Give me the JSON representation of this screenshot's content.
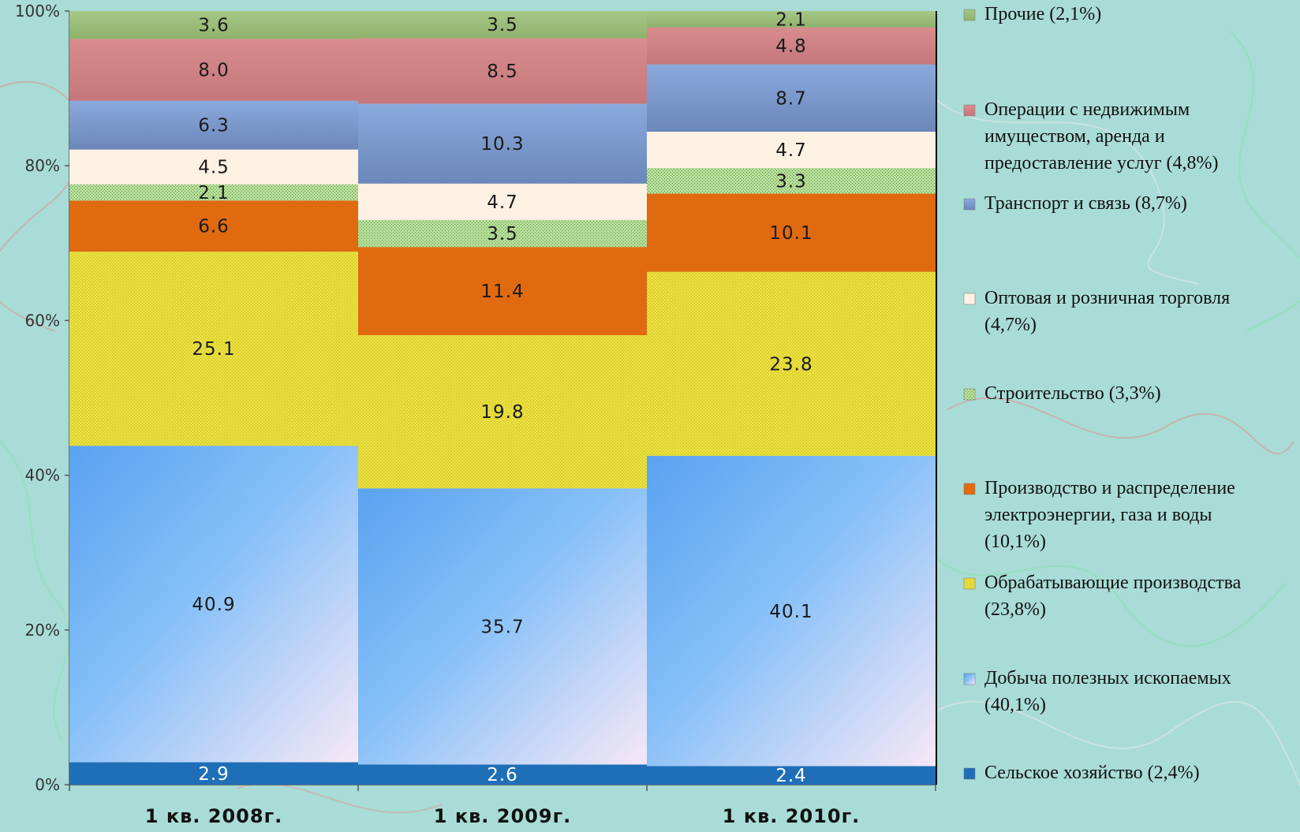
{
  "chart_data": {
    "type": "bar",
    "stacked": true,
    "normalized_percent": true,
    "categories": [
      "1 кв. 2008г.",
      "1 кв. 2009г.",
      "1 кв. 2010г."
    ],
    "ylim": [
      0,
      100
    ],
    "yticks": [
      "0%",
      "20%",
      "40%",
      "60%",
      "80%",
      "100%"
    ],
    "legend_position": "right",
    "series": [
      {
        "name": "Сельское хозяйство (2,4%)",
        "values": [
          2.9,
          2.6,
          2.4
        ],
        "labels": [
          "2.9",
          "2.6",
          "2.4"
        ],
        "color": "#1f6fb8"
      },
      {
        "name": "Добыча полезных ископаемых (40,1%)",
        "values": [
          40.9,
          35.7,
          40.1
        ],
        "labels": [
          "40.9",
          "35.7",
          "40.1"
        ],
        "color": "#8cc3f5"
      },
      {
        "name": "Обрабатывающие производства (23,8%)",
        "values": [
          25.1,
          19.8,
          23.8
        ],
        "labels": [
          "25.1",
          "19.8",
          "23.8"
        ],
        "color": "#e4da3a"
      },
      {
        "name": "Производство и распределение электроэнергии, газа и воды (10,1%)",
        "values": [
          6.6,
          11.4,
          10.1
        ],
        "labels": [
          "6.6",
          "11.4",
          "10.1"
        ],
        "color": "#e06a10"
      },
      {
        "name": "Строительство (3,3%)",
        "values": [
          2.1,
          3.5,
          3.3
        ],
        "labels": [
          "2.1",
          "3.5",
          "3.3"
        ],
        "color": "#a8d58a"
      },
      {
        "name": "Оптовая и розничная торговля (4,7%)",
        "values": [
          4.5,
          4.7,
          4.7
        ],
        "labels": [
          "4.5",
          "4.7",
          "4.7"
        ],
        "color": "#fdf1e4"
      },
      {
        "name": "Транспорт и связь (8,7%)",
        "values": [
          6.3,
          10.3,
          8.7
        ],
        "labels": [
          "6.3",
          "10.3",
          "8.7"
        ],
        "color": "#7f9dcc"
      },
      {
        "name": "Операции с недвижимым имуществом, аренда и предоставление услуг (4,8%)",
        "values": [
          8.0,
          8.5,
          4.8
        ],
        "labels": [
          "8.0",
          "8.5",
          "4.8"
        ],
        "color": "#d08a8a"
      },
      {
        "name": "Прочие (2,1%)",
        "values": [
          3.6,
          3.5,
          2.1
        ],
        "labels": [
          "3.6",
          "3.5",
          "2.1"
        ],
        "color": "#9fc07a"
      }
    ]
  }
}
